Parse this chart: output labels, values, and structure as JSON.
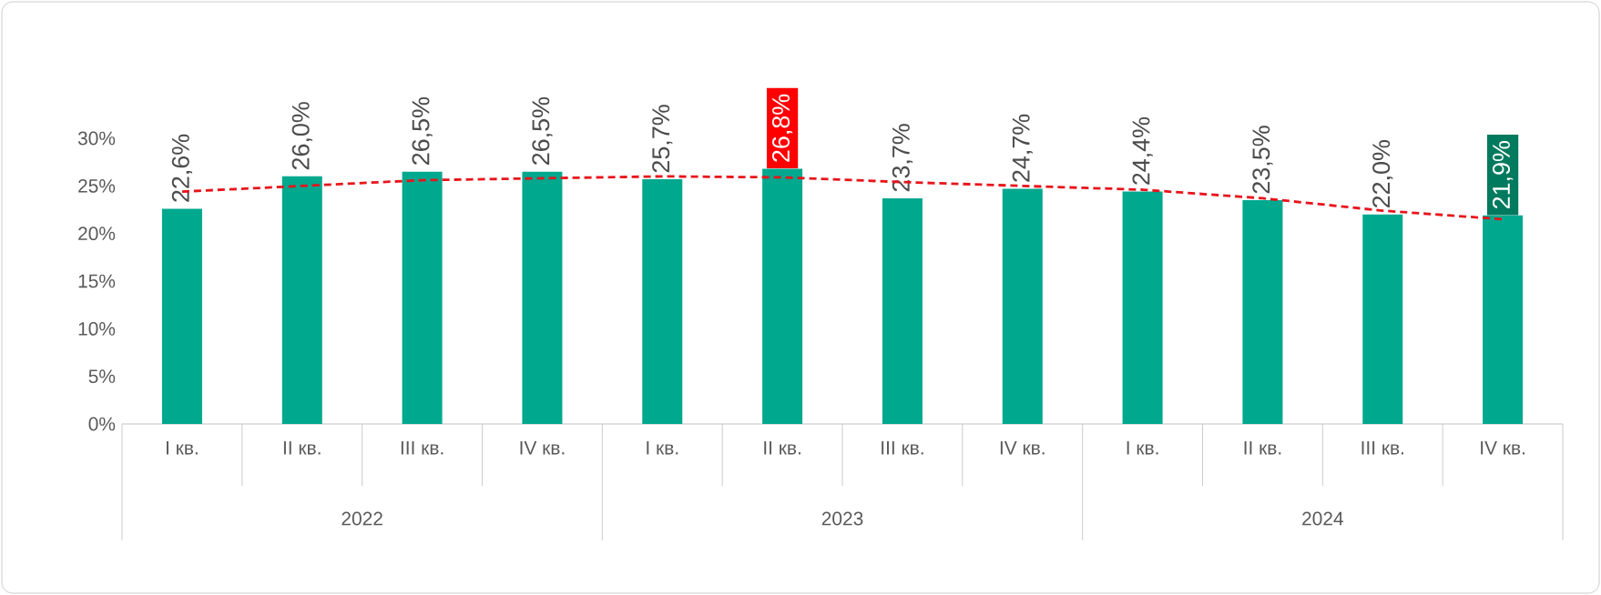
{
  "chart_data": {
    "type": "bar",
    "categories": [
      "I кв.",
      "II кв.",
      "III кв.",
      "IV кв.",
      "I кв.",
      "II кв.",
      "III кв.",
      "IV кв.",
      "I кв.",
      "II кв.",
      "III кв.",
      "IV кв."
    ],
    "series": [
      {
        "color": "#00a88e",
        "values": [
          22.6,
          26.0,
          26.5,
          26.5,
          25.7,
          26.8,
          23.7,
          24.7,
          24.4,
          23.5,
          22.0,
          21.9
        ],
        "value_labels": [
          "22,6%",
          "26,0%",
          "26,5%",
          "26,5%",
          "25,7%",
          "26,8%",
          "23,7%",
          "24,7%",
          "24,4%",
          "23,5%",
          "22,0%",
          "21,9%"
        ]
      },
      {
        "type": "line",
        "color": "#e8141b",
        "line_style": "dashed",
        "marker": "none",
        "values": [
          24.4,
          25.0,
          25.6,
          25.8,
          26.0,
          25.9,
          25.4,
          25.0,
          24.6,
          23.7,
          22.4,
          21.5
        ]
      }
    ],
    "ylim": [
      0,
      30
    ],
    "yticks": [
      {
        "value": 0,
        "label": "0%"
      },
      {
        "value": 5,
        "label": "5%"
      },
      {
        "value": 10,
        "label": "10%"
      },
      {
        "value": 15,
        "label": "15%"
      },
      {
        "value": 20,
        "label": "20%"
      },
      {
        "value": 25,
        "label": "25%"
      },
      {
        "value": 30,
        "label": "30%"
      }
    ],
    "grid": false,
    "annotations": [
      "2022",
      "2023",
      "2024"
    ]
  }
}
